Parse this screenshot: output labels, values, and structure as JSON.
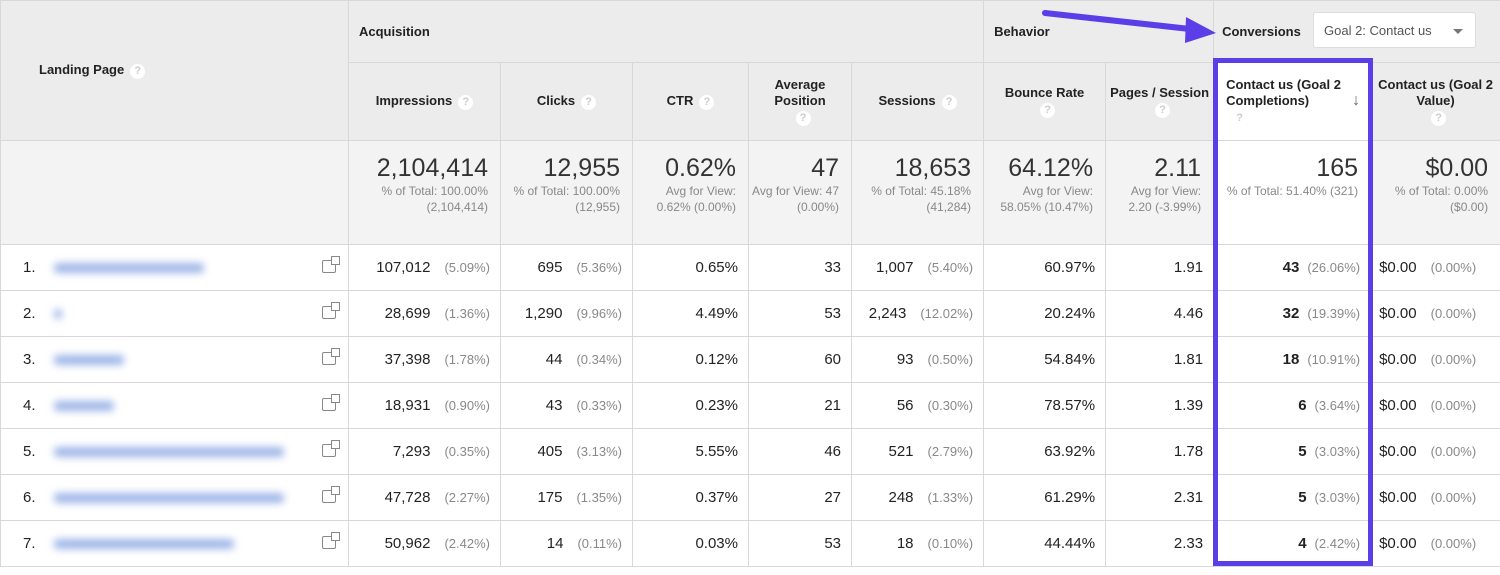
{
  "groups": {
    "landing_page": "Landing Page",
    "acquisition": "Acquisition",
    "behavior": "Behavior",
    "conversions": "Conversions",
    "goal_select": "Goal 2: Contact us"
  },
  "columns": [
    "Impressions",
    "Clicks",
    "CTR",
    "Average Position",
    "Sessions",
    "Bounce Rate",
    "Pages / Session",
    "Contact us (Goal 2 Completions)",
    "Contact us (Goal 2 Value)"
  ],
  "totals": [
    {
      "value": "2,104,414",
      "sub": "% of Total: 100.00% (2,104,414)"
    },
    {
      "value": "12,955",
      "sub": "% of Total: 100.00% (12,955)"
    },
    {
      "value": "0.62%",
      "sub": "Avg for View: 0.62% (0.00%)"
    },
    {
      "value": "47",
      "sub": "Avg for View: 47 (0.00%)"
    },
    {
      "value": "18,653",
      "sub": "% of Total: 45.18% (41,284)"
    },
    {
      "value": "64.12%",
      "sub": "Avg for View: 58.05% (10.47%)"
    },
    {
      "value": "2.11",
      "sub": "Avg for View: 2.20 (-3.99%)"
    },
    {
      "value": "165",
      "sub": "% of Total: 51.40% (321)"
    },
    {
      "value": "$0.00",
      "sub": "% of Total: 0.00% ($0.00)"
    }
  ],
  "rows": [
    {
      "n": "1.",
      "imp": "107,012",
      "impp": "(5.09%)",
      "clk": "695",
      "clkp": "(5.36%)",
      "ctr": "0.65%",
      "pos": "33",
      "ses": "1,007",
      "sesp": "(5.40%)",
      "br": "60.97%",
      "pps": "1.91",
      "gc": "43",
      "gcp": "(26.06%)",
      "gv": "$0.00",
      "gvp": "(0.00%)"
    },
    {
      "n": "2.",
      "imp": "28,699",
      "impp": "(1.36%)",
      "clk": "1,290",
      "clkp": "(9.96%)",
      "ctr": "4.49%",
      "pos": "53",
      "ses": "2,243",
      "sesp": "(12.02%)",
      "br": "20.24%",
      "pps": "4.46",
      "gc": "32",
      "gcp": "(19.39%)",
      "gv": "$0.00",
      "gvp": "(0.00%)"
    },
    {
      "n": "3.",
      "imp": "37,398",
      "impp": "(1.78%)",
      "clk": "44",
      "clkp": "(0.34%)",
      "ctr": "0.12%",
      "pos": "60",
      "ses": "93",
      "sesp": "(0.50%)",
      "br": "54.84%",
      "pps": "1.81",
      "gc": "18",
      "gcp": "(10.91%)",
      "gv": "$0.00",
      "gvp": "(0.00%)"
    },
    {
      "n": "4.",
      "imp": "18,931",
      "impp": "(0.90%)",
      "clk": "43",
      "clkp": "(0.33%)",
      "ctr": "0.23%",
      "pos": "21",
      "ses": "56",
      "sesp": "(0.30%)",
      "br": "78.57%",
      "pps": "1.39",
      "gc": "6",
      "gcp": "(3.64%)",
      "gv": "$0.00",
      "gvp": "(0.00%)"
    },
    {
      "n": "5.",
      "imp": "7,293",
      "impp": "(0.35%)",
      "clk": "405",
      "clkp": "(3.13%)",
      "ctr": "5.55%",
      "pos": "46",
      "ses": "521",
      "sesp": "(2.79%)",
      "br": "63.92%",
      "pps": "1.78",
      "gc": "5",
      "gcp": "(3.03%)",
      "gv": "$0.00",
      "gvp": "(0.00%)"
    },
    {
      "n": "6.",
      "imp": "47,728",
      "impp": "(2.27%)",
      "clk": "175",
      "clkp": "(1.35%)",
      "ctr": "0.37%",
      "pos": "27",
      "ses": "248",
      "sesp": "(1.33%)",
      "br": "61.29%",
      "pps": "2.31",
      "gc": "5",
      "gcp": "(3.03%)",
      "gv": "$0.00",
      "gvp": "(0.00%)"
    },
    {
      "n": "7.",
      "imp": "50,962",
      "impp": "(2.42%)",
      "clk": "14",
      "clkp": "(0.11%)",
      "ctr": "0.03%",
      "pos": "53",
      "ses": "18",
      "sesp": "(0.10%)",
      "br": "44.44%",
      "pps": "2.33",
      "gc": "4",
      "gcp": "(2.42%)",
      "gv": "$0.00",
      "gvp": "(0.00%)"
    }
  ],
  "colors": {
    "highlight": "#5b3ee8",
    "header_bg": "#ececec"
  }
}
